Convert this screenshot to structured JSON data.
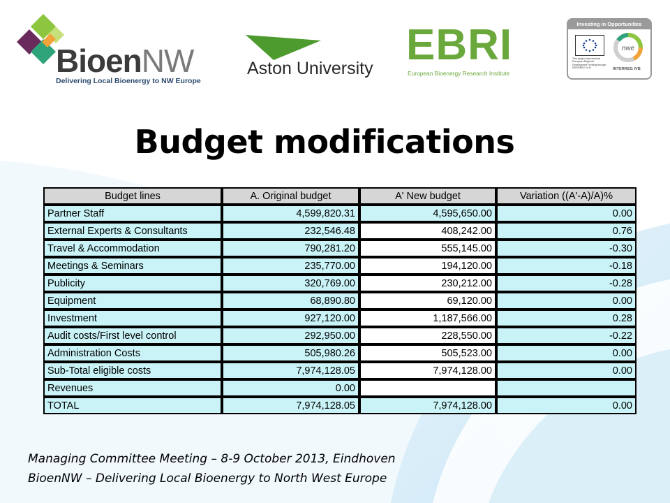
{
  "logos": {
    "bioen": {
      "name": "BioenNW",
      "name_main": "Bioen",
      "name_suffix": "NW",
      "tagline": "Delivering Local Bioenergy to NW Europe"
    },
    "aston": {
      "name": "Aston University"
    },
    "ebri": {
      "name": "EBRI",
      "subtitle": "European Bioenergy Research Institute"
    },
    "interreg": {
      "header": "Investing in Opportunities",
      "funding_note": "This project has received European Regional Development Funding through INTERREG IV B.",
      "ring_label": "nwe",
      "footer": "INTERREG IVB"
    }
  },
  "title": "Budget modifications",
  "table": {
    "headers": [
      "Budget lines",
      "A. Original budget",
      "A' New budget",
      "Variation ((A'-A)/A)%"
    ],
    "rows": [
      [
        "Partner Staff",
        "4,599,820.31",
        "4,595,650.00",
        "0.00"
      ],
      [
        "External Experts & Consultants",
        "232,546.48",
        "408,242.00",
        "0.76"
      ],
      [
        "Travel & Accommodation",
        "790,281.20",
        "555,145.00",
        "-0.30"
      ],
      [
        "Meetings & Seminars",
        "235,770.00",
        "194,120.00",
        "-0.18"
      ],
      [
        "Publicity",
        "320,769.00",
        "230,212.00",
        "-0.28"
      ],
      [
        "Equipment",
        "68,890.80",
        "69,120.00",
        "0.00"
      ],
      [
        "Investment",
        "927,120.00",
        "1,187,566.00",
        "0.28"
      ],
      [
        "Audit costs/First level control",
        "292,950.00",
        "228,550.00",
        "-0.22"
      ],
      [
        "Administration Costs",
        "505,980.26",
        "505,523.00",
        "0.00"
      ],
      [
        "Sub-Total eligible costs",
        "7,974,128.05",
        "7,974,128.00",
        "0.00"
      ],
      [
        "Revenues",
        "0.00",
        "",
        ""
      ],
      [
        "TOTAL",
        "7,974,128.05",
        "7,974,128.00",
        "0.00"
      ]
    ]
  },
  "footer": {
    "line1": "Managing  Committee Meeting –  8-9 October 2013, Eindhoven",
    "line2": "BioenNW – Delivering Local Bioenergy to North West Europe"
  },
  "colors": {
    "cell_fill": "#c9f3f7",
    "header_fill": "#d6d6d6",
    "bioen_green": "#8cc63f",
    "ebri_green": "#6aa83c",
    "aston_green": "#4d9a2e",
    "swoosh_blue": "#c7e6f6"
  }
}
